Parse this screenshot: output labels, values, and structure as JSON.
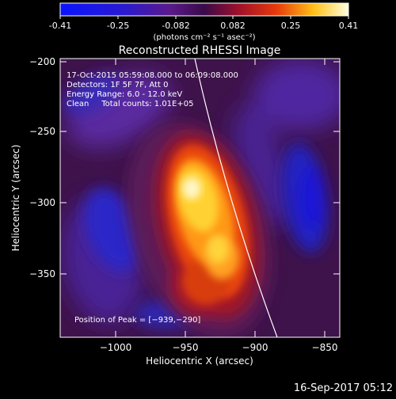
{
  "colorbar": {
    "ticks": [
      "-0.41",
      "-0.25",
      "-0.082",
      "0.082",
      "0.25",
      "0.41"
    ],
    "unit_label": "(photons cm⁻² s⁻¹ asec⁻²)"
  },
  "plot": {
    "title": "Reconstructed RHESSI Image",
    "xlabel": "Heliocentric X (arcsec)",
    "ylabel": "Heliocentric Y (arcsec)",
    "xticks": [
      "−1000",
      "−950",
      "−900",
      "−850"
    ],
    "yticks": [
      "−200",
      "−250",
      "−300",
      "−350"
    ]
  },
  "annotation": {
    "line1": "17-Oct-2015 05:59:08.000 to 06:09:08.000",
    "line2": "Detectors: 1F 5F 7F, Att 0",
    "line3": "Energy Range: 6.0 - 12.0 keV",
    "line4": "Clean     Total counts: 1.01E+05",
    "peak": "Position of Peak = [−939,−290]"
  },
  "footer": {
    "timestamp": "16-Sep-2017 05:12"
  }
}
